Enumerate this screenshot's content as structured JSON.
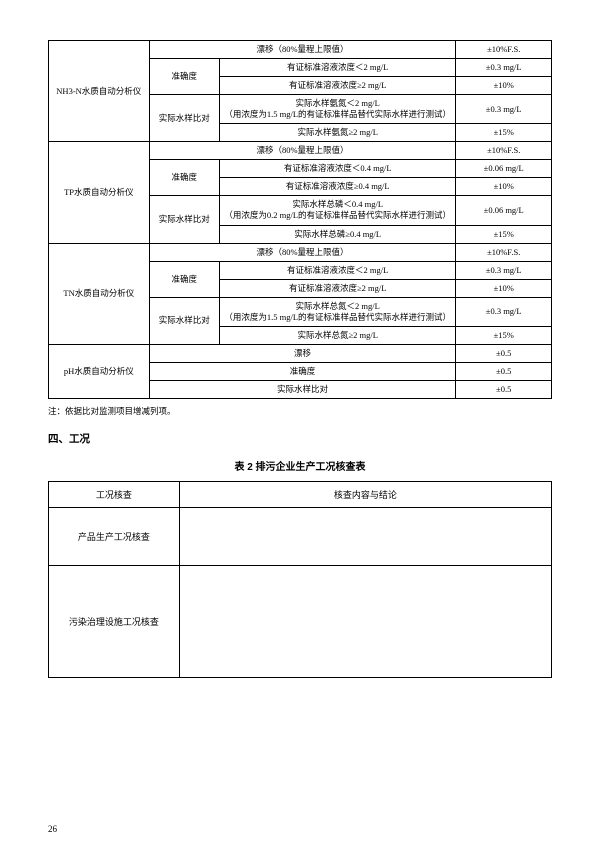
{
  "table1": {
    "col_widths": [
      "20%",
      "14%",
      "47%",
      "19%"
    ],
    "rows": [
      {
        "c": [
          {
            "t": "NH3-N水质自动分析仪",
            "rs": 5
          },
          {
            "t": "漂移（80%量程上限值）",
            "cs": 2
          },
          {
            "t": "±10%F.S."
          }
        ]
      },
      {
        "c": [
          {
            "t": "准确度",
            "rs": 2
          },
          {
            "t": "有证标准溶液浓度＜2 mg/L"
          },
          {
            "t": "±0.3 mg/L"
          }
        ]
      },
      {
        "c": [
          {
            "t": "有证标准溶液浓度≥2 mg/L"
          },
          {
            "t": "±10%"
          }
        ]
      },
      {
        "c": [
          {
            "t": "实际水样比对",
            "rs": 2
          },
          {
            "t": "实际水样氨氮＜2 mg/L\n（用浓度为1.5 mg/L的有证标准样品替代实际水样进行测试）"
          },
          {
            "t": "±0.3 mg/L"
          }
        ]
      },
      {
        "c": [
          {
            "t": "实际水样氨氮≥2 mg/L"
          },
          {
            "t": "±15%"
          }
        ]
      },
      {
        "c": [
          {
            "t": "TP水质自动分析仪",
            "rs": 5
          },
          {
            "t": "漂移（80%量程上限值）",
            "cs": 2
          },
          {
            "t": "±10%F.S."
          }
        ]
      },
      {
        "c": [
          {
            "t": "准确度",
            "rs": 2
          },
          {
            "t": "有证标准溶液浓度＜0.4 mg/L"
          },
          {
            "t": "±0.06 mg/L"
          }
        ]
      },
      {
        "c": [
          {
            "t": "有证标准溶液浓度≥0.4 mg/L"
          },
          {
            "t": "±10%"
          }
        ]
      },
      {
        "c": [
          {
            "t": "实际水样比对",
            "rs": 2
          },
          {
            "t": "实际水样总磷＜0.4 mg/L\n（用浓度为0.2 mg/L的有证标准样品替代实际水样进行测试）"
          },
          {
            "t": "±0.06 mg/L"
          }
        ]
      },
      {
        "c": [
          {
            "t": "实际水样总磷≥0.4 mg/L"
          },
          {
            "t": "±15%"
          }
        ]
      },
      {
        "c": [
          {
            "t": "TN水质自动分析仪",
            "rs": 5
          },
          {
            "t": "漂移（80%量程上限值）",
            "cs": 2
          },
          {
            "t": "±10%F.S."
          }
        ]
      },
      {
        "c": [
          {
            "t": "准确度",
            "rs": 2
          },
          {
            "t": "有证标准溶液浓度＜2 mg/L"
          },
          {
            "t": "±0.3 mg/L"
          }
        ]
      },
      {
        "c": [
          {
            "t": "有证标准溶液浓度≥2 mg/L"
          },
          {
            "t": "±10%"
          }
        ]
      },
      {
        "c": [
          {
            "t": "实际水样比对",
            "rs": 2
          },
          {
            "t": "实际水样总氮＜2 mg/L\n（用浓度为1.5 mg/L的有证标准样品替代实际水样进行测试）"
          },
          {
            "t": "±0.3 mg/L"
          }
        ]
      },
      {
        "c": [
          {
            "t": "实际水样总氮≥2 mg/L"
          },
          {
            "t": "±15%"
          }
        ]
      },
      {
        "c": [
          {
            "t": "pH水质自动分析仪",
            "rs": 3
          },
          {
            "t": "漂移",
            "cs": 2
          },
          {
            "t": "±0.5"
          }
        ]
      },
      {
        "c": [
          {
            "t": "准确度",
            "cs": 2
          },
          {
            "t": "±0.5"
          }
        ]
      },
      {
        "c": [
          {
            "t": "实际水样比对",
            "cs": 2
          },
          {
            "t": "±0.5"
          }
        ]
      }
    ]
  },
  "note": "注：依据比对监测项目增减列项。",
  "section": "四、工况",
  "caption2": "表 2  排污企业生产工况核查表",
  "table2": {
    "col_widths": [
      "26%",
      "74%"
    ],
    "head": [
      "工况核查",
      "核查内容与结论"
    ],
    "rows": [
      {
        "label": "产品生产工况核查",
        "content": ""
      },
      {
        "label": "污染治理设施工况核查",
        "content": ""
      }
    ]
  },
  "page": "26"
}
